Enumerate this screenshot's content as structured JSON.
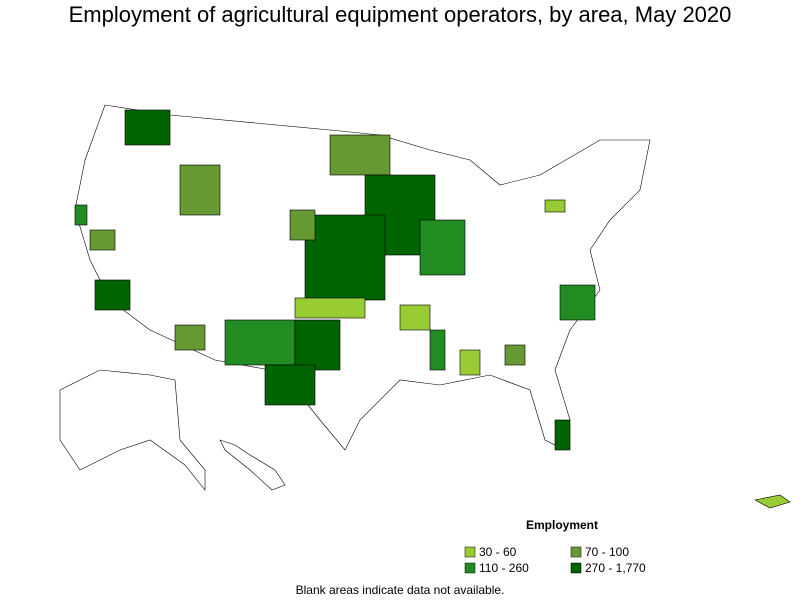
{
  "title": "Employment of agricultural equipment operators, by area, May 2020",
  "legend": {
    "title": "Employment",
    "items": [
      {
        "label": "30 - 60",
        "color": "#99cc33"
      },
      {
        "label": "70 - 100",
        "color": "#669933"
      },
      {
        "label": "110 - 260",
        "color": "#228b22"
      },
      {
        "label": "270 - 1,770",
        "color": "#006400"
      }
    ]
  },
  "footnote": "Blank areas indicate data not available."
}
